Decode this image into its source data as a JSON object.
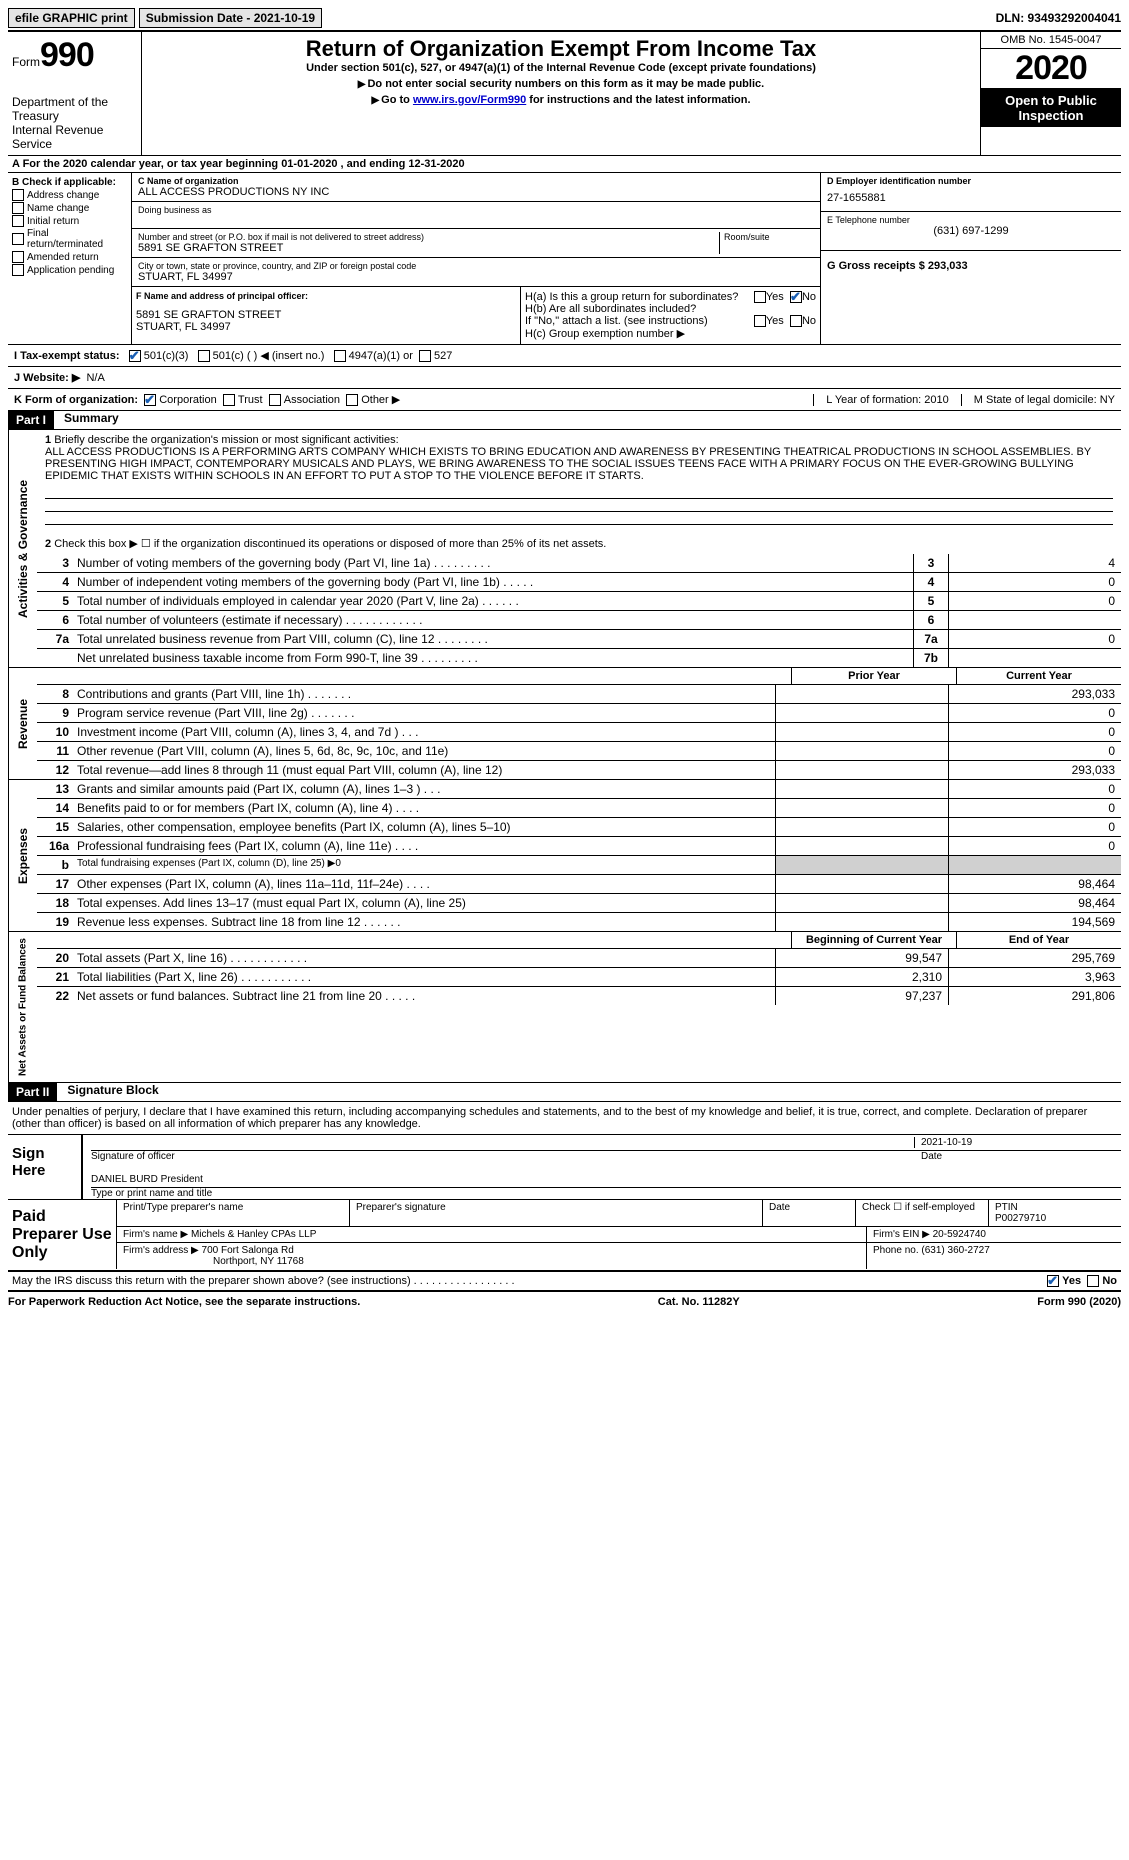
{
  "topbar": {
    "efile": "efile GRAPHIC print",
    "submission_date_label": "Submission Date - 2021-10-19",
    "dln_label": "DLN: 93493292004041"
  },
  "header": {
    "form_label": "Form",
    "form_num": "990",
    "dept1": "Department of the Treasury",
    "dept2": "Internal Revenue Service",
    "title": "Return of Organization Exempt From Income Tax",
    "subtitle": "Under section 501(c), 527, or 4947(a)(1) of the Internal Revenue Code (except private foundations)",
    "instr1": "Do not enter social security numbers on this form as it may be made public.",
    "instr2_pre": "Go to ",
    "instr2_link": "www.irs.gov/Form990",
    "instr2_post": " for instructions and the latest information.",
    "omb": "OMB No. 1545-0047",
    "year": "2020",
    "open": "Open to Public Inspection"
  },
  "row_a": "A   For the 2020 calendar year, or tax year beginning 01-01-2020   , and ending 12-31-2020",
  "section_b": {
    "header": "B Check if applicable:",
    "items": [
      "Address change",
      "Name change",
      "Initial return",
      "Final return/terminated",
      "Amended return",
      "Application pending"
    ]
  },
  "section_c": {
    "c_label": "C Name of organization",
    "c_name": "ALL ACCESS PRODUCTIONS NY INC",
    "dba_label": "Doing business as",
    "addr_label": "Number and street (or P.O. box if mail is not delivered to street address)",
    "addr": "5891 SE GRAFTON STREET",
    "room_label": "Room/suite",
    "city_label": "City or town, state or province, country, and ZIP or foreign postal code",
    "city": "STUART, FL  34997"
  },
  "section_d": {
    "d_label": "D Employer identification number",
    "d_val": "27-1655881",
    "e_label": "E Telephone number",
    "e_val": "(631) 697-1299",
    "g_label": "G Gross receipts $ 293,033"
  },
  "section_f": {
    "f_label": "F Name and address of principal officer:",
    "f_addr1": "5891 SE GRAFTON STREET",
    "f_addr2": "STUART, FL  34997"
  },
  "section_h": {
    "ha": "H(a)  Is this a group return for subordinates?",
    "hb": "H(b)  Are all subordinates included?",
    "hb_note": "If \"No,\" attach a list. (see instructions)",
    "hc": "H(c)  Group exemption number ▶",
    "yes": "Yes",
    "no": "No"
  },
  "row_i": {
    "label": "I    Tax-exempt status:",
    "opt1": "501(c)(3)",
    "opt2": "501(c) (  ) ◀ (insert no.)",
    "opt3": "4947(a)(1) or",
    "opt4": "527"
  },
  "row_j": {
    "label": "J    Website: ▶",
    "val": "N/A"
  },
  "row_k": {
    "label": "K Form of organization:",
    "opts": [
      "Corporation",
      "Trust",
      "Association",
      "Other ▶"
    ],
    "l_label": "L Year of formation: 2010",
    "m_label": "M State of legal domicile: NY"
  },
  "part1": {
    "header": "Part I",
    "title": "Summary",
    "side1": "Activities & Governance",
    "side2": "Revenue",
    "side3": "Expenses",
    "side4": "Net Assets or Fund Balances",
    "line1_label": "Briefly describe the organization's mission or most significant activities:",
    "line1_text": "ALL ACCESS PRODUCTIONS IS A PERFORMING ARTS COMPANY WHICH EXISTS TO BRING EDUCATION AND AWARENESS BY PRESENTING THEATRICAL PRODUCTIONS IN SCHOOL ASSEMBLIES. BY PRESENTING HIGH IMPACT, CONTEMPORARY MUSICALS AND PLAYS, WE BRING AWARENESS TO THE SOCIAL ISSUES TEENS FACE WITH A PRIMARY FOCUS ON THE EVER-GROWING BULLYING EPIDEMIC THAT EXISTS WITHIN SCHOOLS IN AN EFFORT TO PUT A STOP TO THE VIOLENCE BEFORE IT STARTS.",
    "line2": "Check this box ▶ ☐  if the organization discontinued its operations or disposed of more than 25% of its net assets.",
    "lines_gov": [
      {
        "n": "3",
        "t": "Number of voting members of the governing body (Part VI, line 1a)   .    .    .    .    .    .    .    .    .",
        "b": "3",
        "v": "4"
      },
      {
        "n": "4",
        "t": "Number of independent voting members of the governing body (Part VI, line 1b)    .    .    .    .    .",
        "b": "4",
        "v": "0"
      },
      {
        "n": "5",
        "t": "Total number of individuals employed in calendar year 2020 (Part V, line 2a)   .    .    .    .    .    .",
        "b": "5",
        "v": "0"
      },
      {
        "n": "6",
        "t": "Total number of volunteers (estimate if necessary)   .    .    .    .    .    .    .    .    .    .    .    .",
        "b": "6",
        "v": ""
      },
      {
        "n": "7a",
        "t": "Total unrelated business revenue from Part VIII, column (C), line 12   .    .    .    .    .    .    .    .",
        "b": "7a",
        "v": "0"
      },
      {
        "n": "",
        "t": "Net unrelated business taxable income from Form 990-T, line 39    .    .    .    .    .    .    .    .    .",
        "b": "7b",
        "v": ""
      }
    ],
    "col_prior": "Prior Year",
    "col_current": "Current Year",
    "col_begin": "Beginning of Current Year",
    "col_end": "End of Year",
    "lines_rev": [
      {
        "n": "8",
        "t": "Contributions and grants (Part VIII, line 1h)   .    .    .    .    .    .    .",
        "p": "",
        "c": "293,033"
      },
      {
        "n": "9",
        "t": "Program service revenue (Part VIII, line 2g)    .    .    .    .    .    .    .",
        "p": "",
        "c": "0"
      },
      {
        "n": "10",
        "t": "Investment income (Part VIII, column (A), lines 3, 4, and 7d )   .    .    .",
        "p": "",
        "c": "0"
      },
      {
        "n": "11",
        "t": "Other revenue (Part VIII, column (A), lines 5, 6d, 8c, 9c, 10c, and 11e)",
        "p": "",
        "c": "0"
      },
      {
        "n": "12",
        "t": "Total revenue—add lines 8 through 11 (must equal Part VIII, column (A), line 12)",
        "p": "",
        "c": "293,033"
      }
    ],
    "lines_exp": [
      {
        "n": "13",
        "t": "Grants and similar amounts paid (Part IX, column (A), lines 1–3 )  .    .    .",
        "p": "",
        "c": "0"
      },
      {
        "n": "14",
        "t": "Benefits paid to or for members (Part IX, column (A), line 4)   .    .    .    .",
        "p": "",
        "c": "0"
      },
      {
        "n": "15",
        "t": "Salaries, other compensation, employee benefits (Part IX, column (A), lines 5–10)",
        "p": "",
        "c": "0"
      },
      {
        "n": "16a",
        "t": "Professional fundraising fees (Part IX, column (A), line 11e)   .    .    .    .",
        "p": "",
        "c": "0"
      },
      {
        "n": "b",
        "t": "Total fundraising expenses (Part IX, column (D), line 25) ▶0",
        "p": "shade",
        "c": "shade"
      },
      {
        "n": "17",
        "t": "Other expenses (Part IX, column (A), lines 11a–11d, 11f–24e)    .    .    .    .",
        "p": "",
        "c": "98,464"
      },
      {
        "n": "18",
        "t": "Total expenses. Add lines 13–17 (must equal Part IX, column (A), line 25)",
        "p": "",
        "c": "98,464"
      },
      {
        "n": "19",
        "t": "Revenue less expenses. Subtract line 18 from line 12   .    .    .    .    .    .",
        "p": "",
        "c": "194,569"
      }
    ],
    "lines_net": [
      {
        "n": "20",
        "t": "Total assets (Part X, line 16)  .    .    .    .    .    .    .    .    .    .    .    .",
        "p": "99,547",
        "c": "295,769"
      },
      {
        "n": "21",
        "t": "Total liabilities (Part X, line 26)   .    .    .    .    .    .    .    .    .    .    .",
        "p": "2,310",
        "c": "3,963"
      },
      {
        "n": "22",
        "t": "Net assets or fund balances. Subtract line 21 from line 20   .    .    .    .    .",
        "p": "97,237",
        "c": "291,806"
      }
    ]
  },
  "part2": {
    "header": "Part II",
    "title": "Signature Block",
    "penalty": "Under penalties of perjury, I declare that I have examined this return, including accompanying schedules and statements, and to the best of my knowledge and belief, it is true, correct, and complete. Declaration of preparer (other than officer) is based on all information of which preparer has any knowledge.",
    "sign_here": "Sign Here",
    "sig_officer": "Signature of officer",
    "sig_date": "2021-10-19",
    "date_label": "Date",
    "officer_name": "DANIEL BURD President",
    "type_name": "Type or print name and title",
    "paid_prep": "Paid Preparer Use Only",
    "print_name": "Print/Type preparer's name",
    "prep_sig": "Preparer's signature",
    "check_if": "Check ☐ if self-employed",
    "ptin_label": "PTIN",
    "ptin": "P00279710",
    "firm_name_label": "Firm's name    ▶",
    "firm_name": "Michels & Hanley CPAs LLP",
    "firm_ein_label": "Firm's EIN ▶",
    "firm_ein": "20-5924740",
    "firm_addr_label": "Firm's address ▶",
    "firm_addr1": "700 Fort Salonga Rd",
    "firm_addr2": "Northport, NY  11768",
    "phone_label": "Phone no.",
    "phone": "(631) 360-2727",
    "discuss": "May the IRS discuss this return with the preparer shown above? (see instructions)    .    .    .    .    .    .    .    .    .    .    .    .    .    .    .    .    .",
    "yes": "Yes",
    "no": "No"
  },
  "footer": {
    "left": "For Paperwork Reduction Act Notice, see the separate instructions.",
    "center": "Cat. No. 11282Y",
    "right": "Form 990 (2020)"
  }
}
